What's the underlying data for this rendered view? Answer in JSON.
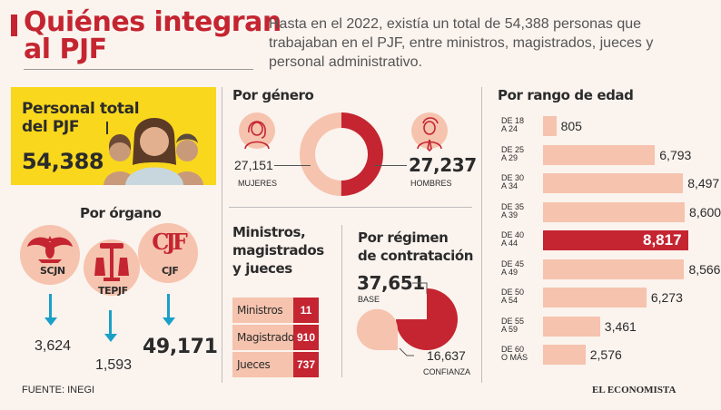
{
  "header": {
    "title_line1": "Quiénes integran",
    "title_line2": "al PJF",
    "intro": "Hasta en el 2022, existía un total de 54,388 personas que trabajaban en el PJF, entre ministros, magistrados, jueces y personal administrativo."
  },
  "total": {
    "label_line1": "Personal total",
    "label_line2": "del PJF",
    "value": "54,388"
  },
  "por_organo": {
    "title": "Por órgano",
    "items": [
      {
        "name": "SCJN",
        "value": "3,624"
      },
      {
        "name": "TEPJF",
        "value": "1,593"
      },
      {
        "name": "CJF",
        "value": "49,171"
      }
    ],
    "cjf_logo": "CJF"
  },
  "por_genero": {
    "title": "Por género",
    "mujeres_value": "27,151",
    "mujeres_label": "MUJERES",
    "hombres_value": "27,237",
    "hombres_label": "HOMBRES"
  },
  "ministros": {
    "title_line1": "Ministros,",
    "title_line2": "magistrados",
    "title_line3": "y jueces",
    "rows": [
      {
        "label": "Ministros",
        "value": "11"
      },
      {
        "label": "Magistrados",
        "value": "910"
      },
      {
        "label": "Jueces",
        "value": "737"
      }
    ]
  },
  "regimen": {
    "title_line1": "Por régimen",
    "title_line2": "de contratación",
    "base_value": "37,651",
    "base_label": "BASE",
    "confianza_value": "16,637",
    "confianza_label": "CONFIANZA"
  },
  "chart_data": [
    {
      "type": "pie",
      "title": "Por género",
      "categories": [
        "Mujeres",
        "Hombres"
      ],
      "values": [
        27151,
        27237
      ],
      "colors": [
        "#f6c3ae",
        "#c42530"
      ]
    },
    {
      "type": "pie",
      "title": "Por régimen de contratación",
      "categories": [
        "Base",
        "Confianza"
      ],
      "values": [
        37651,
        16637
      ],
      "colors": [
        "#c42530",
        "#f6c3ae"
      ]
    },
    {
      "type": "bar",
      "title": "Por rango de edad",
      "orientation": "horizontal",
      "categories": [
        {
          "l1": "DE 18",
          "l2": "A 24"
        },
        {
          "l1": "DE 25",
          "l2": "A 29"
        },
        {
          "l1": "DE 30",
          "l2": "A 34"
        },
        {
          "l1": "DE 35",
          "l2": "A 39"
        },
        {
          "l1": "DE 40",
          "l2": "A 44"
        },
        {
          "l1": "DE 45",
          "l2": "A 49"
        },
        {
          "l1": "DE 50",
          "l2": "A 54"
        },
        {
          "l1": "DE 55",
          "l2": "A 59"
        },
        {
          "l1": "DE 60",
          "l2": "O MÁS"
        }
      ],
      "values": [
        805,
        6793,
        8497,
        8600,
        8817,
        8566,
        6273,
        3461,
        2576
      ],
      "labels": [
        "805",
        "6,793",
        "8,497",
        "8,600",
        "8,817",
        "8,566",
        "6,273",
        "3,461",
        "2,576"
      ],
      "highlight_index": 4,
      "colors": {
        "bar": "#f6c3ae",
        "highlight": "#c42530"
      }
    }
  ],
  "footer": {
    "source": "FUENTE: INEGI",
    "logo": "EL ECONOMISTA"
  }
}
